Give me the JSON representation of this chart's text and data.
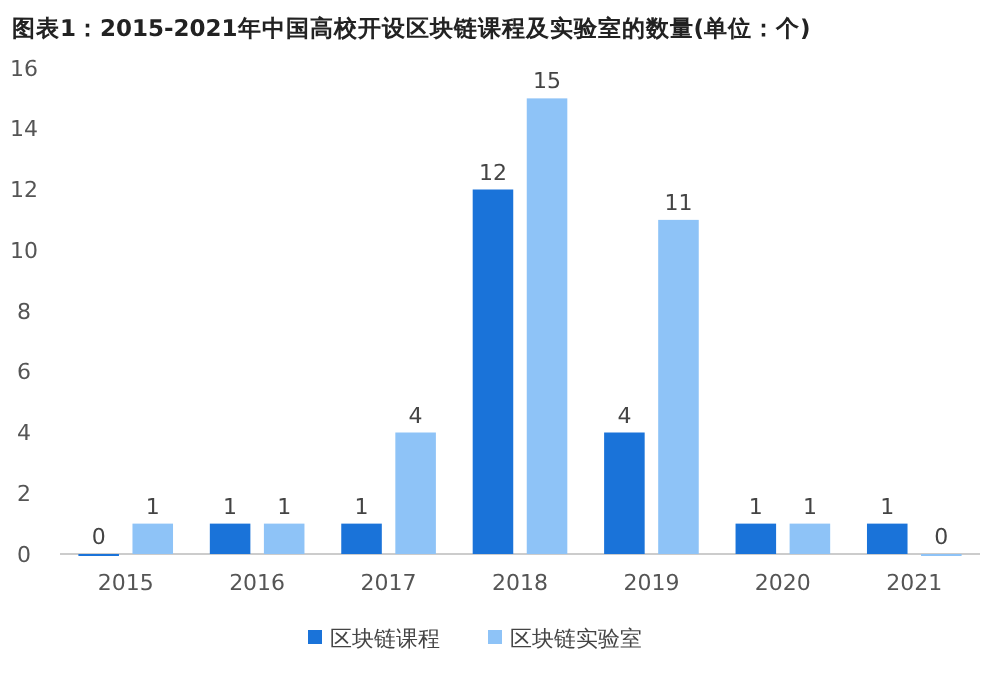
{
  "chart_data": {
    "type": "bar",
    "title": "图表1：2015-2021年中国高校开设区块链课程及实验室的数量(单位：个)",
    "categories": [
      "2015",
      "2016",
      "2017",
      "2018",
      "2019",
      "2020",
      "2021"
    ],
    "series": [
      {
        "name": "区块链课程",
        "color": "#1a73d9",
        "values": [
          0,
          1,
          1,
          12,
          4,
          1,
          1
        ]
      },
      {
        "name": "区块链实验室",
        "color": "#8ec3f7",
        "values": [
          1,
          1,
          4,
          15,
          11,
          1,
          0
        ]
      }
    ],
    "ylim": [
      0,
      16
    ],
    "yticks": [
      0,
      2,
      4,
      6,
      8,
      10,
      12,
      14,
      16
    ],
    "data_labels": true,
    "legend": "bottom",
    "grid": false
  }
}
